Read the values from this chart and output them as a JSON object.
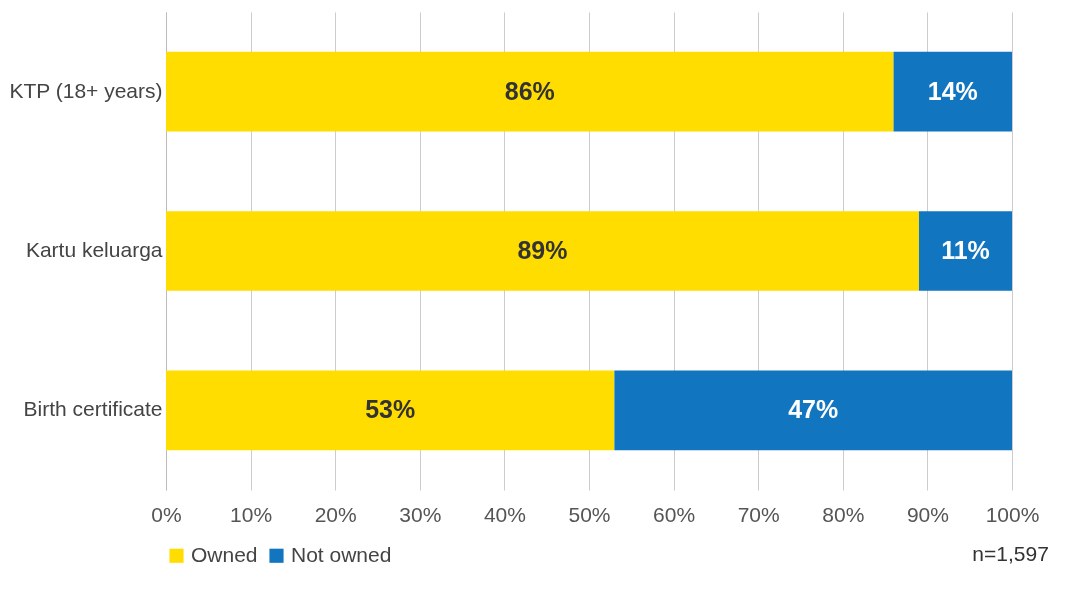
{
  "chart_data": {
    "type": "bar",
    "orientation": "horizontal",
    "stacked": true,
    "categories": [
      "KTP (18+ years)",
      "Kartu keluarga",
      "Birth certificate"
    ],
    "series": [
      {
        "name": "Owned",
        "color": "#ffdd00",
        "values": [
          86,
          89,
          53
        ],
        "value_labels": [
          "86%",
          "89%",
          "53%"
        ]
      },
      {
        "name": "Not owned",
        "color": "#1175c0",
        "values": [
          14,
          11,
          47
        ],
        "value_labels": [
          "14%",
          "11%",
          "47%"
        ]
      }
    ],
    "xlim": [
      0,
      100
    ],
    "xticks": [
      {
        "value": 0,
        "label": "0%"
      },
      {
        "value": 10,
        "label": "10%"
      },
      {
        "value": 20,
        "label": "20%"
      },
      {
        "value": 30,
        "label": "30%"
      },
      {
        "value": 40,
        "label": "40%"
      },
      {
        "value": 50,
        "label": "50%"
      },
      {
        "value": 60,
        "label": "60%"
      },
      {
        "value": 70,
        "label": "70%"
      },
      {
        "value": 80,
        "label": "80%"
      },
      {
        "value": 90,
        "label": "90%"
      },
      {
        "value": 100,
        "label": "100%"
      }
    ],
    "grid": "x",
    "legend": "bottom",
    "annotations": [
      "n=1,597"
    ]
  }
}
